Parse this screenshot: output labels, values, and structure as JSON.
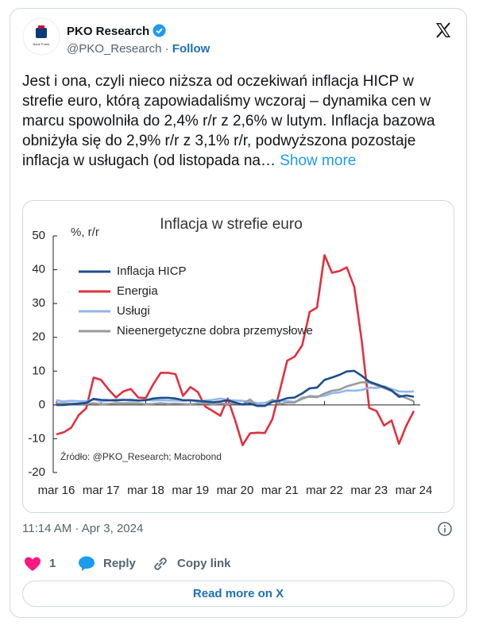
{
  "tweet": {
    "author": "PKO Research",
    "handle": "@PKO_Research",
    "follow": "Follow",
    "avatar_text": "Bank Polski",
    "text": "Jest i ona, czyli nieco niższa od oczekiwań inflacja HICP w strefie euro, którą zapowiadaliśmy wczoraj – dynamika cen w marcu spowolniła do 2,4% r/r z 2,6% w lutym. Inflacja bazowa obniżyła się do 2,9% r/r z 3,1% r/r, podwyższona pozostaje inflacja w usługach (od listopada na…",
    "show_more": "Show more",
    "timestamp": "11:14 AM · Apr 3, 2024",
    "likes": "1",
    "reply": "Reply",
    "copy_link": "Copy link",
    "read_more": "Read more on X"
  },
  "chart_data": {
    "type": "line",
    "title": "Inflacja w strefie euro",
    "y_label": "%, r/r",
    "source": "Źródło: @PKO_Research; Macrobond",
    "categories": [
      "mar 16",
      null,
      null,
      null,
      null,
      null,
      "mar 17",
      null,
      null,
      null,
      null,
      null,
      "mar 18",
      null,
      null,
      null,
      null,
      null,
      "mar 19",
      null,
      null,
      null,
      null,
      null,
      "mar 20",
      null,
      null,
      null,
      null,
      null,
      "mar 21",
      null,
      null,
      null,
      null,
      null,
      "mar 22",
      null,
      null,
      null,
      null,
      null,
      "mar 23",
      null,
      null,
      null,
      null,
      null,
      "mar 24"
    ],
    "ylim": [
      -20,
      50
    ],
    "yticks": [
      -20,
      -10,
      0,
      10,
      20,
      30,
      40,
      50
    ],
    "grid": false,
    "legend": "upper left",
    "series": [
      {
        "name": "Inflacja HICP",
        "color": "#1b4d8c",
        "values": [
          0,
          0,
          0.2,
          0.4,
          0.6,
          1.8,
          1.5,
          1.4,
          1.3,
          1.5,
          1.5,
          1.3,
          1.4,
          1.9,
          2.1,
          2.1,
          1.9,
          1.4,
          1.4,
          1.2,
          1.0,
          0.8,
          1.0,
          1.4,
          0.7,
          0.1,
          0.4,
          -0.3,
          -0.3,
          0.9,
          1.3,
          2.0,
          2.2,
          3.4,
          4.9,
          5.1,
          7.4,
          8.1,
          8.9,
          9.9,
          10.1,
          8.6,
          6.9,
          6.1,
          5.3,
          4.3,
          2.4,
          2.8,
          2.4
        ]
      },
      {
        "name": "Energia",
        "color": "#e0303f",
        "values": [
          -8.7,
          -8.1,
          -6.7,
          -3,
          -1,
          8.1,
          7.4,
          4.6,
          2.2,
          4,
          4.7,
          2.2,
          2,
          6.1,
          9.5,
          9.5,
          9.1,
          2.7,
          5.3,
          3.8,
          -0.5,
          -1.8,
          -3.2,
          1.9,
          -4.5,
          -11.9,
          -8.4,
          -8.2,
          -8.3,
          -4.2,
          4.3,
          13.1,
          14.3,
          17.6,
          27.5,
          28.8,
          44.3,
          39.1,
          39.6,
          40.7,
          34.9,
          18.9,
          -0.9,
          -1.8,
          -6.1,
          -4.6,
          -11.5,
          -6.1,
          -1.8
        ]
      },
      {
        "name": "Usługi",
        "color": "#92b6ea",
        "values": [
          1.4,
          1.0,
          1.2,
          1.1,
          1.1,
          1.6,
          1.0,
          1.3,
          1.6,
          1.5,
          1.2,
          1.3,
          1.5,
          1.3,
          1.4,
          1.3,
          1.3,
          1.2,
          1.4,
          1.0,
          1.3,
          1.5,
          1.9,
          1.5,
          1.3,
          1.2,
          0.9,
          0.5,
          0.6,
          1.4,
          1.3,
          1.1,
          0.9,
          1.7,
          2.7,
          2.5,
          2.7,
          3.5,
          3.7,
          4.3,
          4.2,
          4.4,
          5.1,
          5.0,
          5.5,
          4.7,
          4.0,
          3.9,
          4.0
        ]
      },
      {
        "name": "Nieenergetyczne dobra przemysłowe",
        "color": "#9a9a9a",
        "values": [
          0.5,
          0.4,
          0.4,
          0.3,
          0.3,
          0.5,
          0.2,
          0.3,
          0.5,
          0.5,
          0.5,
          0.5,
          0.2,
          0.3,
          0.5,
          0.3,
          0.4,
          0.3,
          0.2,
          0.4,
          0.5,
          0.2,
          0.4,
          0.3,
          0.5,
          0.2,
          1.6,
          -0.3,
          -0.3,
          1.5,
          0.3,
          0.7,
          0.7,
          2.1,
          2.4,
          2.3,
          3.4,
          4.2,
          4.5,
          5.5,
          6.1,
          6.7,
          6.6,
          5.8,
          5.0,
          4.1,
          2.9,
          2.0,
          1.1
        ]
      }
    ]
  }
}
